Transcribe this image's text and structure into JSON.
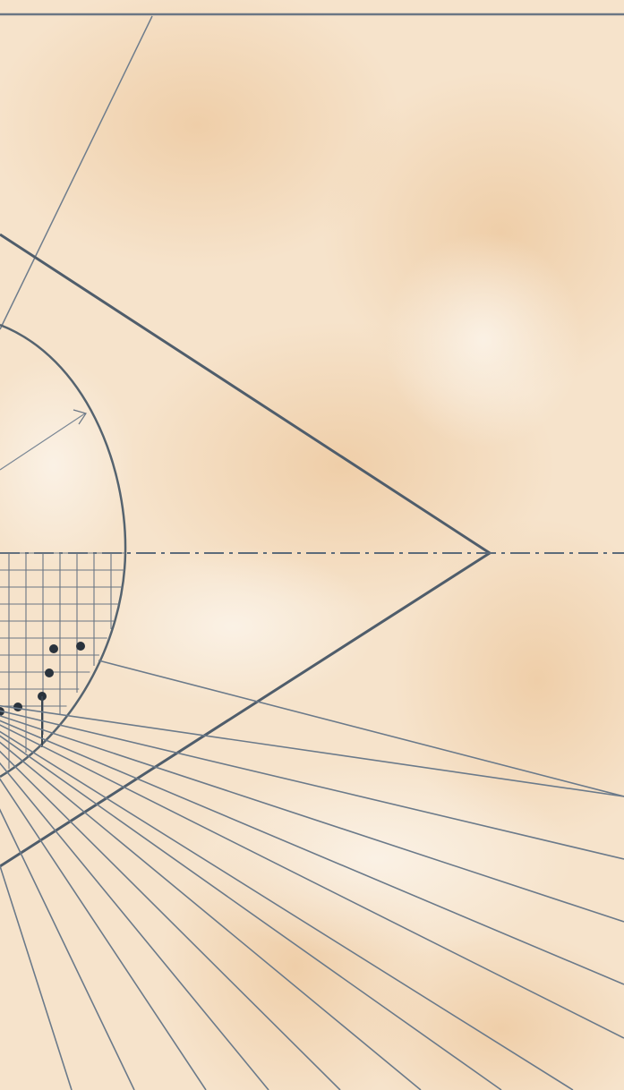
{
  "drawing": {
    "description_text": "",
    "paper_color": "#f6e3cb",
    "paper_stain_color": "#efc9a0",
    "ink_color": "#5c6b7a",
    "dark_ink_color": "#2f3a45"
  }
}
